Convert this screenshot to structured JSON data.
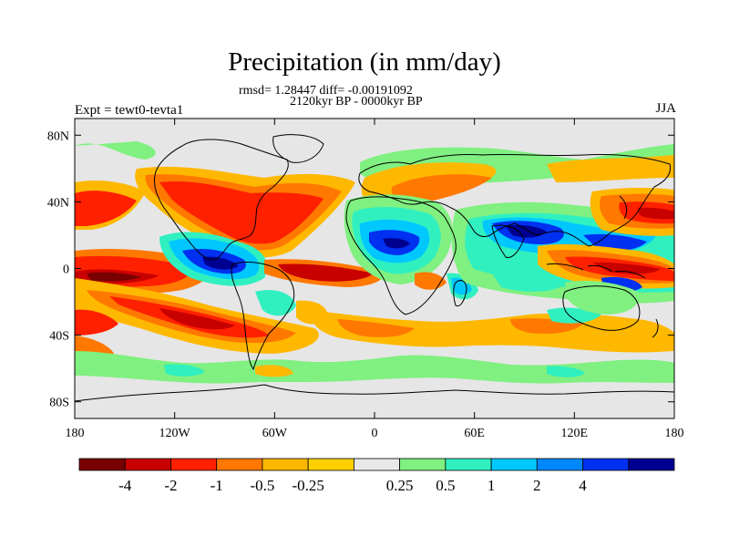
{
  "title": "Precipitation (in mm/day)",
  "stats_line": "rmsd= 1.28447 diff= -0.00191092",
  "period_line": "2120kyr BP - 0000kyr BP",
  "left_label": "Expt = tewt0-tevta1",
  "right_label": "JJA",
  "lat_ticks": [
    {
      "label": "80N",
      "lat": 80
    },
    {
      "label": "40N",
      "lat": 40
    },
    {
      "label": "0",
      "lat": 0
    },
    {
      "label": "40S",
      "lat": -40
    },
    {
      "label": "80S",
      "lat": -80
    }
  ],
  "lon_ticks": [
    {
      "label": "180",
      "lon": -180
    },
    {
      "label": "120W",
      "lon": -120
    },
    {
      "label": "60W",
      "lon": -60
    },
    {
      "label": "0",
      "lon": 0
    },
    {
      "label": "60E",
      "lon": 60
    },
    {
      "label": "120E",
      "lon": 120
    },
    {
      "label": "180",
      "lon": 180
    }
  ],
  "colorbar": {
    "colors": [
      "#780000",
      "#c80000",
      "#ff2000",
      "#ff7800",
      "#ffb800",
      "#ffd000",
      "#e8e8e8",
      "#80f080",
      "#30f0c0",
      "#00c8ff",
      "#0088ff",
      "#0030f0",
      "#000090"
    ],
    "labels": [
      "-4",
      "-2",
      "-1",
      "-0.5",
      "-0.25",
      "0.25",
      "0.5",
      "1",
      "2",
      "4"
    ]
  },
  "colors": {
    "background_field": "#e6e6e6",
    "coastline": "#000000"
  }
}
